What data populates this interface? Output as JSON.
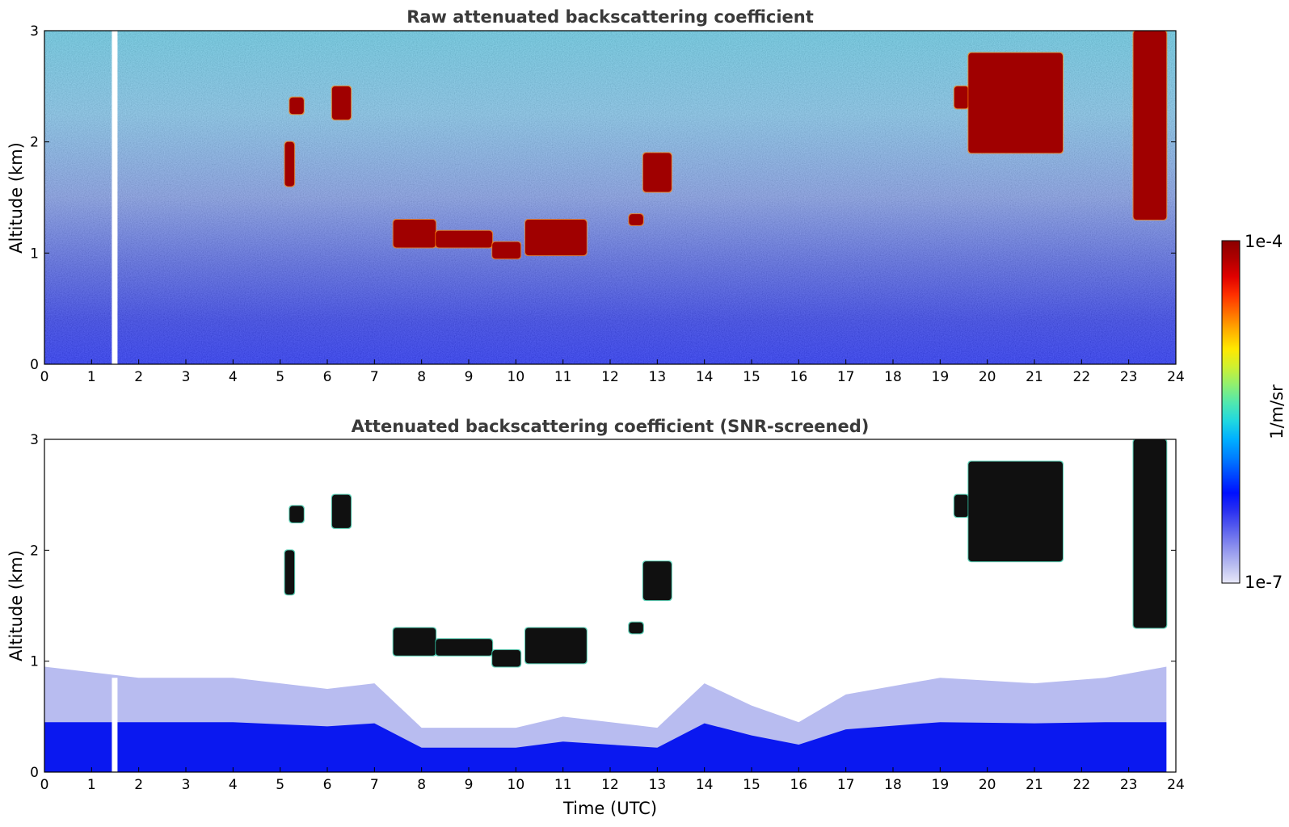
{
  "chart_data": [
    {
      "type": "heatmap",
      "title": "Raw attenuated backscattering coefficient",
      "xlabel": "",
      "ylabel": "Altitude (km)",
      "xlim": [
        0,
        24
      ],
      "ylim": [
        0,
        3
      ],
      "xticks": [
        "0",
        "1",
        "2",
        "3",
        "4",
        "5",
        "6",
        "7",
        "8",
        "9",
        "10",
        "11",
        "12",
        "13",
        "14",
        "15",
        "16",
        "17",
        "18",
        "19",
        "20",
        "21",
        "22",
        "23",
        "24"
      ],
      "yticks": [
        "0",
        "1",
        "2",
        "3"
      ],
      "data_gap": {
        "x_start": 1.43,
        "x_end": 1.55
      },
      "cloud_features": [
        {
          "x_start": 5.1,
          "x_end": 5.3,
          "y_bottom": 1.6,
          "y_top": 2.0
        },
        {
          "x_start": 5.2,
          "x_end": 5.5,
          "y_bottom": 2.25,
          "y_top": 2.4
        },
        {
          "x_start": 6.1,
          "x_end": 6.5,
          "y_bottom": 2.2,
          "y_top": 2.5
        },
        {
          "x_start": 7.4,
          "x_end": 8.3,
          "y_bottom": 1.05,
          "y_top": 1.3
        },
        {
          "x_start": 8.3,
          "x_end": 9.5,
          "y_bottom": 1.05,
          "y_top": 1.2
        },
        {
          "x_start": 9.5,
          "x_end": 10.1,
          "y_bottom": 0.95,
          "y_top": 1.1
        },
        {
          "x_start": 10.2,
          "x_end": 11.5,
          "y_bottom": 0.98,
          "y_top": 1.3
        },
        {
          "x_start": 12.4,
          "x_end": 12.7,
          "y_bottom": 1.25,
          "y_top": 1.35
        },
        {
          "x_start": 12.7,
          "x_end": 13.3,
          "y_bottom": 1.55,
          "y_top": 1.9
        },
        {
          "x_start": 19.3,
          "x_end": 19.6,
          "y_bottom": 2.3,
          "y_top": 2.5
        },
        {
          "x_start": 19.6,
          "x_end": 21.6,
          "y_bottom": 1.9,
          "y_top": 2.8
        },
        {
          "x_start": 23.1,
          "x_end": 23.8,
          "y_bottom": 1.3,
          "y_top": 3.0
        }
      ]
    },
    {
      "type": "heatmap",
      "title": "Attenuated backscattering coefficient (SNR-screened)",
      "xlabel": "Time (UTC)",
      "ylabel": "Altitude (km)",
      "xlim": [
        0,
        24
      ],
      "ylim": [
        0,
        3
      ],
      "xticks": [
        "0",
        "1",
        "2",
        "3",
        "4",
        "5",
        "6",
        "7",
        "8",
        "9",
        "10",
        "11",
        "12",
        "13",
        "14",
        "15",
        "16",
        "17",
        "18",
        "19",
        "20",
        "21",
        "22",
        "23",
        "24"
      ],
      "yticks": [
        "0",
        "1",
        "2",
        "3"
      ],
      "boundary_layer_top": [
        [
          0,
          0.95
        ],
        [
          2,
          0.85
        ],
        [
          4,
          0.85
        ],
        [
          6,
          0.75
        ],
        [
          7,
          0.8
        ],
        [
          8,
          0.4
        ],
        [
          10,
          0.4
        ],
        [
          11,
          0.5
        ],
        [
          13,
          0.4
        ],
        [
          14,
          0.8
        ],
        [
          15,
          0.6
        ],
        [
          16,
          0.45
        ],
        [
          17,
          0.7
        ],
        [
          19,
          0.85
        ],
        [
          21,
          0.8
        ],
        [
          22.5,
          0.85
        ],
        [
          23.8,
          0.95
        ]
      ]
    }
  ],
  "colorbar": {
    "label": "1/m/sr",
    "max_label": "1e-4",
    "min_label": "1e-7",
    "scale": "log",
    "range": [
      1e-07,
      0.0001
    ],
    "colors": [
      "#e8e8f8",
      "#b8bcf0",
      "#8c90ee",
      "#5a60ee",
      "#2a30f0",
      "#0010ff",
      "#0048ff",
      "#0080ff",
      "#00b0ff",
      "#20d8e0",
      "#50e8b0",
      "#90f070",
      "#d0f030",
      "#ffe800",
      "#ffb000",
      "#ff7000",
      "#ff3000",
      "#e00000",
      "#b00000",
      "#8b0000"
    ]
  }
}
